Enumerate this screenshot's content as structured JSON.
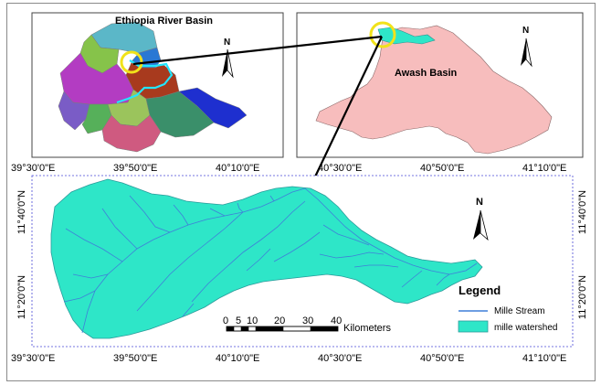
{
  "inset_ethiopia": {
    "title": "Ethiopia River Basin",
    "north": "N"
  },
  "inset_awash": {
    "title": "Awash Basin",
    "north": "N"
  },
  "main_map": {
    "north": "N"
  },
  "graticule": {
    "top_lon": [
      "39°30'0\"E",
      "39°50'0\"E",
      "40°10'0\"E",
      "40°30'0\"E",
      "40°50'0\"E",
      "41°10'0\"E"
    ],
    "bottom_lon": [
      "39°30'0\"E",
      "39°50'0\"E",
      "40°10'0\"E",
      "40°30'0\"E",
      "40°50'0\"E",
      "41°10'0\"E"
    ],
    "left_lat": [
      "11°40'0\"N",
      "11°20'0\"N"
    ],
    "right_lat": [
      "11°40'0\"N",
      "11°20'0\"N"
    ]
  },
  "scale_bar": {
    "labels": [
      "0",
      "5",
      "10",
      "20",
      "30",
      "40"
    ],
    "unit": "Kilometers"
  },
  "legend": {
    "title": "Legend",
    "items": [
      {
        "label": "Mille Stream",
        "color": "#3f7fd9"
      },
      {
        "label": "mille watershed",
        "color": "#2ee6c8"
      }
    ]
  },
  "colors": {
    "watershed": "#2ee6c8",
    "stream": "#3f7fd9",
    "awash": "#f7bdbd",
    "highlight_ring": "#f1e21a",
    "boundary_outline": "#22e6ff"
  }
}
